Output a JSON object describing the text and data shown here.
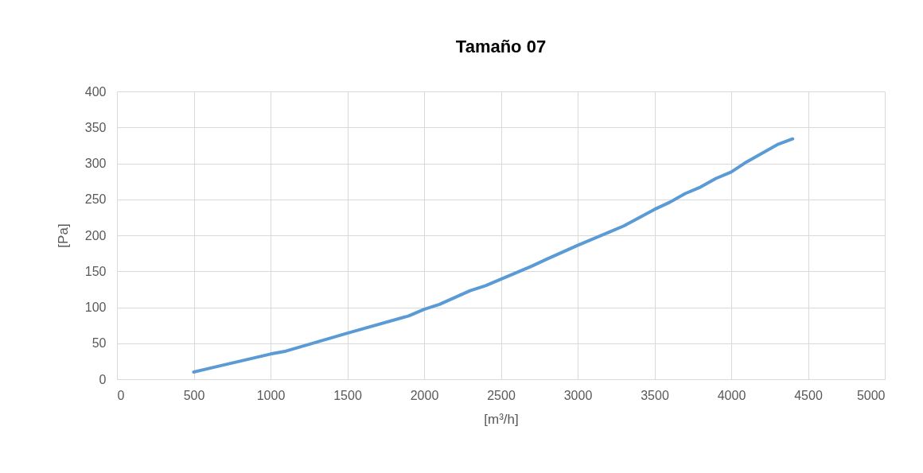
{
  "chart_data": {
    "type": "line",
    "title": "Tamaño 07",
    "xlabel": "[m³/h]",
    "ylabel": "[Pa]",
    "x": [
      500,
      700,
      1000,
      1100,
      1500,
      1900,
      2000,
      2100,
      2300,
      2400,
      2700,
      2800,
      3000,
      3300,
      3500,
      3600,
      3700,
      3800,
      3900,
      4000,
      4100,
      4300,
      4400
    ],
    "series": [
      {
        "color": "#5b9bd5",
        "values": [
          10,
          20,
          35,
          39,
          64,
          88,
          97,
          104,
          123,
          130,
          157,
          167,
          186,
          213,
          236,
          246,
          258,
          267,
          279,
          288,
          302,
          326,
          334
        ]
      }
    ],
    "xlim": [
      0,
      5000
    ],
    "xticks": [
      0,
      500,
      1000,
      1500,
      2000,
      2500,
      3000,
      3500,
      4000,
      4500,
      5000
    ],
    "ylim": [
      0,
      400
    ],
    "yticks": [
      0,
      50,
      100,
      150,
      200,
      250,
      300,
      350,
      400
    ],
    "grid": true,
    "legend": false,
    "marker": "none",
    "line_style": "solid"
  }
}
